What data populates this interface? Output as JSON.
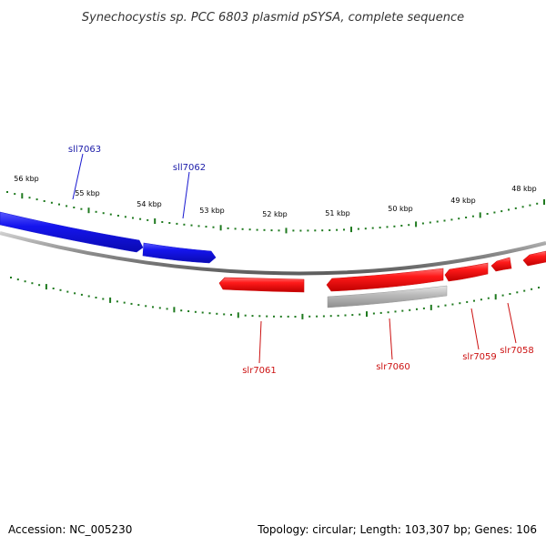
{
  "title": "Synechocystis sp. PCC 6803 plasmid pSYSA, complete sequence",
  "footer": {
    "accession": "Accession: NC_005230",
    "summary": "Topology: circular; Length: 103,307 bp; Genes: 106"
  },
  "colors": {
    "forward_gene": "#1010e0",
    "reverse_gene": "#ee1111",
    "pseudo_gene": "#b4b4b4",
    "backbone": "#8a8a8a",
    "tick": "#1f7a1f",
    "forward_label": "#1a1aa8",
    "reverse_label": "#cc1111"
  },
  "scale": {
    "unit": "kbp",
    "labels": [
      "56 kbp",
      "55 kbp",
      "54 kbp",
      "53 kbp",
      "52 kbp",
      "51 kbp",
      "50 kbp",
      "49 kbp",
      "48 kbp"
    ]
  },
  "genes": [
    {
      "name": "sll7063",
      "strand": "forward"
    },
    {
      "name": "sll7062",
      "strand": "forward"
    },
    {
      "name": "slr7061",
      "strand": "reverse"
    },
    {
      "name": "slr7060",
      "strand": "reverse"
    },
    {
      "name": "slr7059",
      "strand": "reverse"
    },
    {
      "name": "slr7058",
      "strand": "reverse"
    }
  ]
}
